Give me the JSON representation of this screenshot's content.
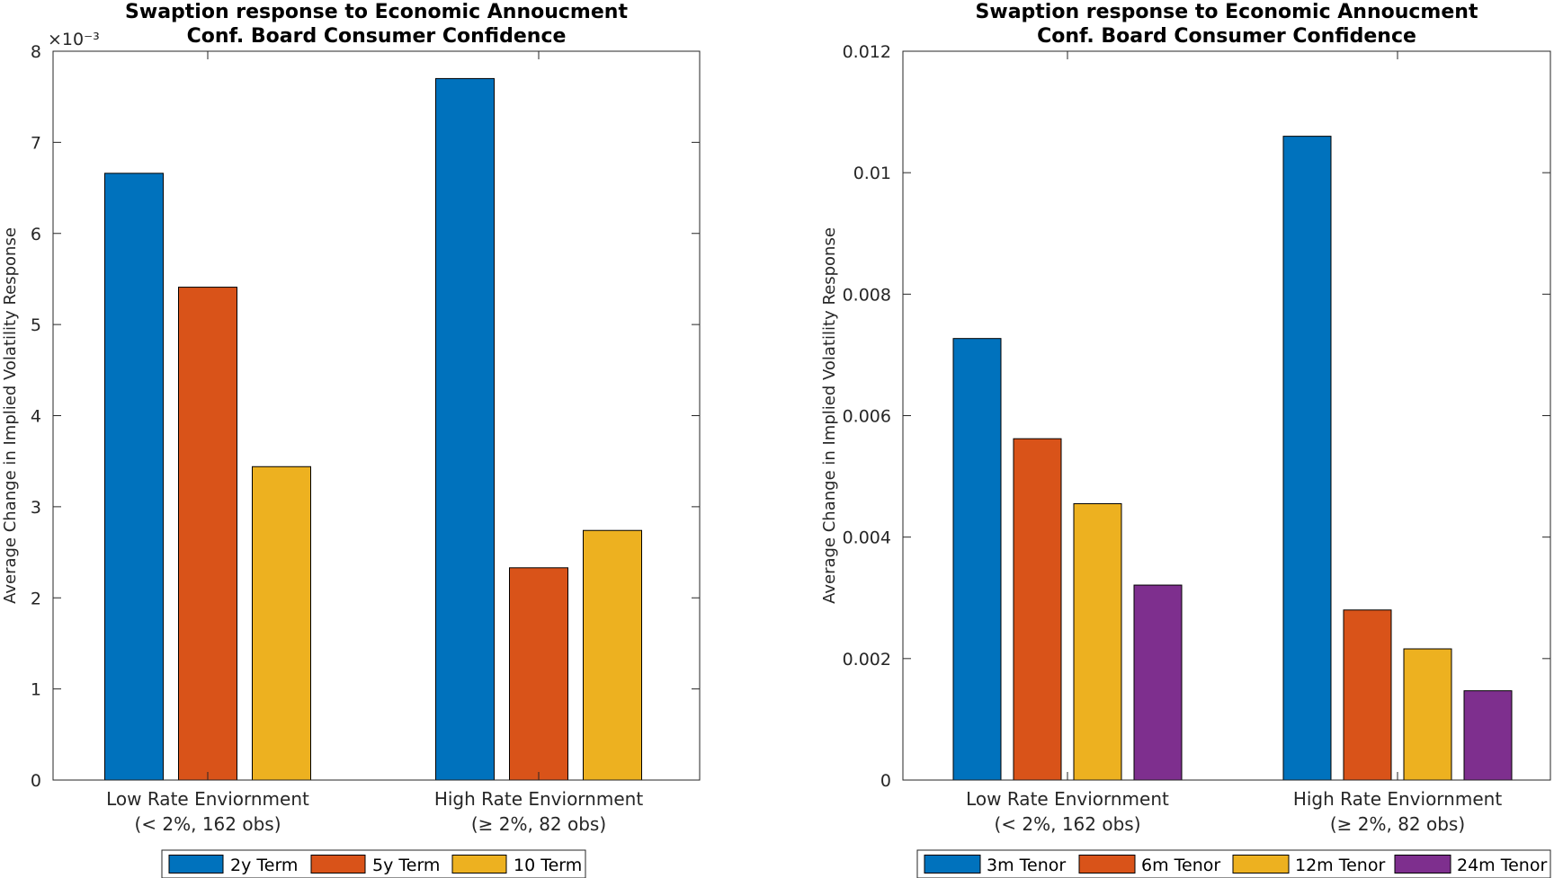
{
  "chart_data": [
    {
      "type": "bar",
      "title": [
        "Swaption response to Economic Annoucment",
        "Conf. Board Consumer Confidence"
      ],
      "ylabel": "Average Change in Implied Volatility Response",
      "xlabel": "",
      "categories": [
        [
          "Low Rate Enviornment",
          "(< 2%, 162 obs)"
        ],
        [
          "High Rate Enviornment",
          "(≥ 2%, 82 obs)"
        ]
      ],
      "series": [
        {
          "name": "2y Term",
          "color": "#0072BD",
          "values": [
            0.00666,
            0.0077
          ]
        },
        {
          "name": "5y Term",
          "color": "#D95319",
          "values": [
            0.00541,
            0.00233
          ]
        },
        {
          "name": "10 Term",
          "color": "#EDB120",
          "values": [
            0.00344,
            0.00274
          ]
        }
      ],
      "ylim": [
        0,
        0.008
      ],
      "yticks": [
        0,
        0.001,
        0.002,
        0.003,
        0.004,
        0.005,
        0.006,
        0.007,
        0.008
      ],
      "ytick_labels": [
        "0",
        "1",
        "2",
        "3",
        "4",
        "5",
        "6",
        "7",
        "8"
      ],
      "y_exponent_label": "×10⁻³",
      "grid": false,
      "legend_position": "bottom-outside"
    },
    {
      "type": "bar",
      "title": [
        "Swaption response to Economic Annoucment",
        "Conf. Board Consumer Confidence"
      ],
      "ylabel": "Average Change in Implied Volatility Response",
      "xlabel": "",
      "categories": [
        [
          "Low Rate Enviornment",
          "(< 2%, 162 obs)"
        ],
        [
          "High Rate Enviornment",
          "(≥ 2%, 82 obs)"
        ]
      ],
      "series": [
        {
          "name": "3m Tenor",
          "color": "#0072BD",
          "values": [
            0.00727,
            0.0106
          ]
        },
        {
          "name": "6m Tenor",
          "color": "#D95319",
          "values": [
            0.00562,
            0.0028
          ]
        },
        {
          "name": "12m Tenor",
          "color": "#EDB120",
          "values": [
            0.00455,
            0.00216
          ]
        },
        {
          "name": "24m Tenor",
          "color": "#7E2F8E",
          "values": [
            0.00321,
            0.00147
          ]
        }
      ],
      "ylim": [
        0,
        0.012
      ],
      "yticks": [
        0,
        0.002,
        0.004,
        0.006,
        0.008,
        0.01,
        0.012
      ],
      "ytick_labels": [
        "0",
        "0.002",
        "0.004",
        "0.006",
        "0.008",
        "0.01",
        "0.012"
      ],
      "y_exponent_label": "",
      "grid": false,
      "legend_position": "bottom-outside"
    }
  ]
}
